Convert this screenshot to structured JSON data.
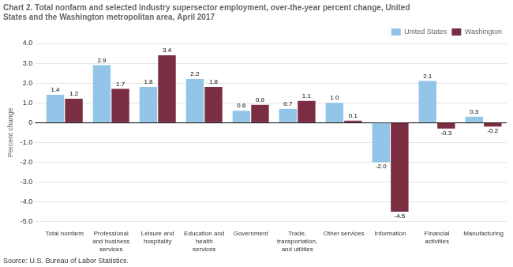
{
  "chart_data": {
    "type": "bar",
    "title": "Chart 2. Total nonfarm and selected industry supersector employment, over-the-year percent change, United\nStates and the Washington metropolitan area, April 2017",
    "ylabel": "Percent change",
    "source": "Source: U.S. Bureau of Labor Statistics.",
    "categories": [
      "Total nonfarm",
      "Professional\nand business\nservices",
      "Leisure and\nhospitality",
      "Education and\nhealth\nservices",
      "Government",
      "Trade,\ntransportation,\nand utilities",
      "Other services",
      "Information",
      "Financial\nactivities",
      "Manufacturing"
    ],
    "series": [
      {
        "name": "United States",
        "color": "#92C5E8",
        "values": [
          1.4,
          2.9,
          1.8,
          2.2,
          0.6,
          0.7,
          1.0,
          -2.0,
          2.1,
          0.3
        ],
        "value_labels": [
          "1.4",
          "2.9",
          "1.8",
          "2.2",
          "0.6",
          "0.7",
          "1.0",
          "-2.0",
          "2.1",
          "0.3"
        ]
      },
      {
        "name": "Washington",
        "color": "#7B2D42",
        "values": [
          1.2,
          1.7,
          3.4,
          1.8,
          0.9,
          1.1,
          0.1,
          -4.5,
          -0.3,
          -0.2
        ],
        "value_labels": [
          "1.2",
          "1.7",
          "3.4",
          "1.8",
          "0.9",
          "1.1",
          "0.1",
          "-4.5",
          "-0.3",
          "-0.2"
        ]
      }
    ],
    "ylim": [
      -5.0,
      4.0
    ],
    "yticks": [
      {
        "value": -5.0,
        "label": "-5.0"
      },
      {
        "value": -4.0,
        "label": "-4.0"
      },
      {
        "value": -3.0,
        "label": "-3.0"
      },
      {
        "value": -2.0,
        "label": "-2.0"
      },
      {
        "value": -1.0,
        "label": "-1.0"
      },
      0,
      {
        "value": 1.0,
        "label": "1.0"
      },
      {
        "value": 2.0,
        "label": "2.0"
      },
      {
        "value": 3.0,
        "label": "3.0"
      },
      {
        "value": 4.0,
        "label": "4.0"
      }
    ],
    "grid": true,
    "legend": "top-right",
    "data_labels": true
  }
}
